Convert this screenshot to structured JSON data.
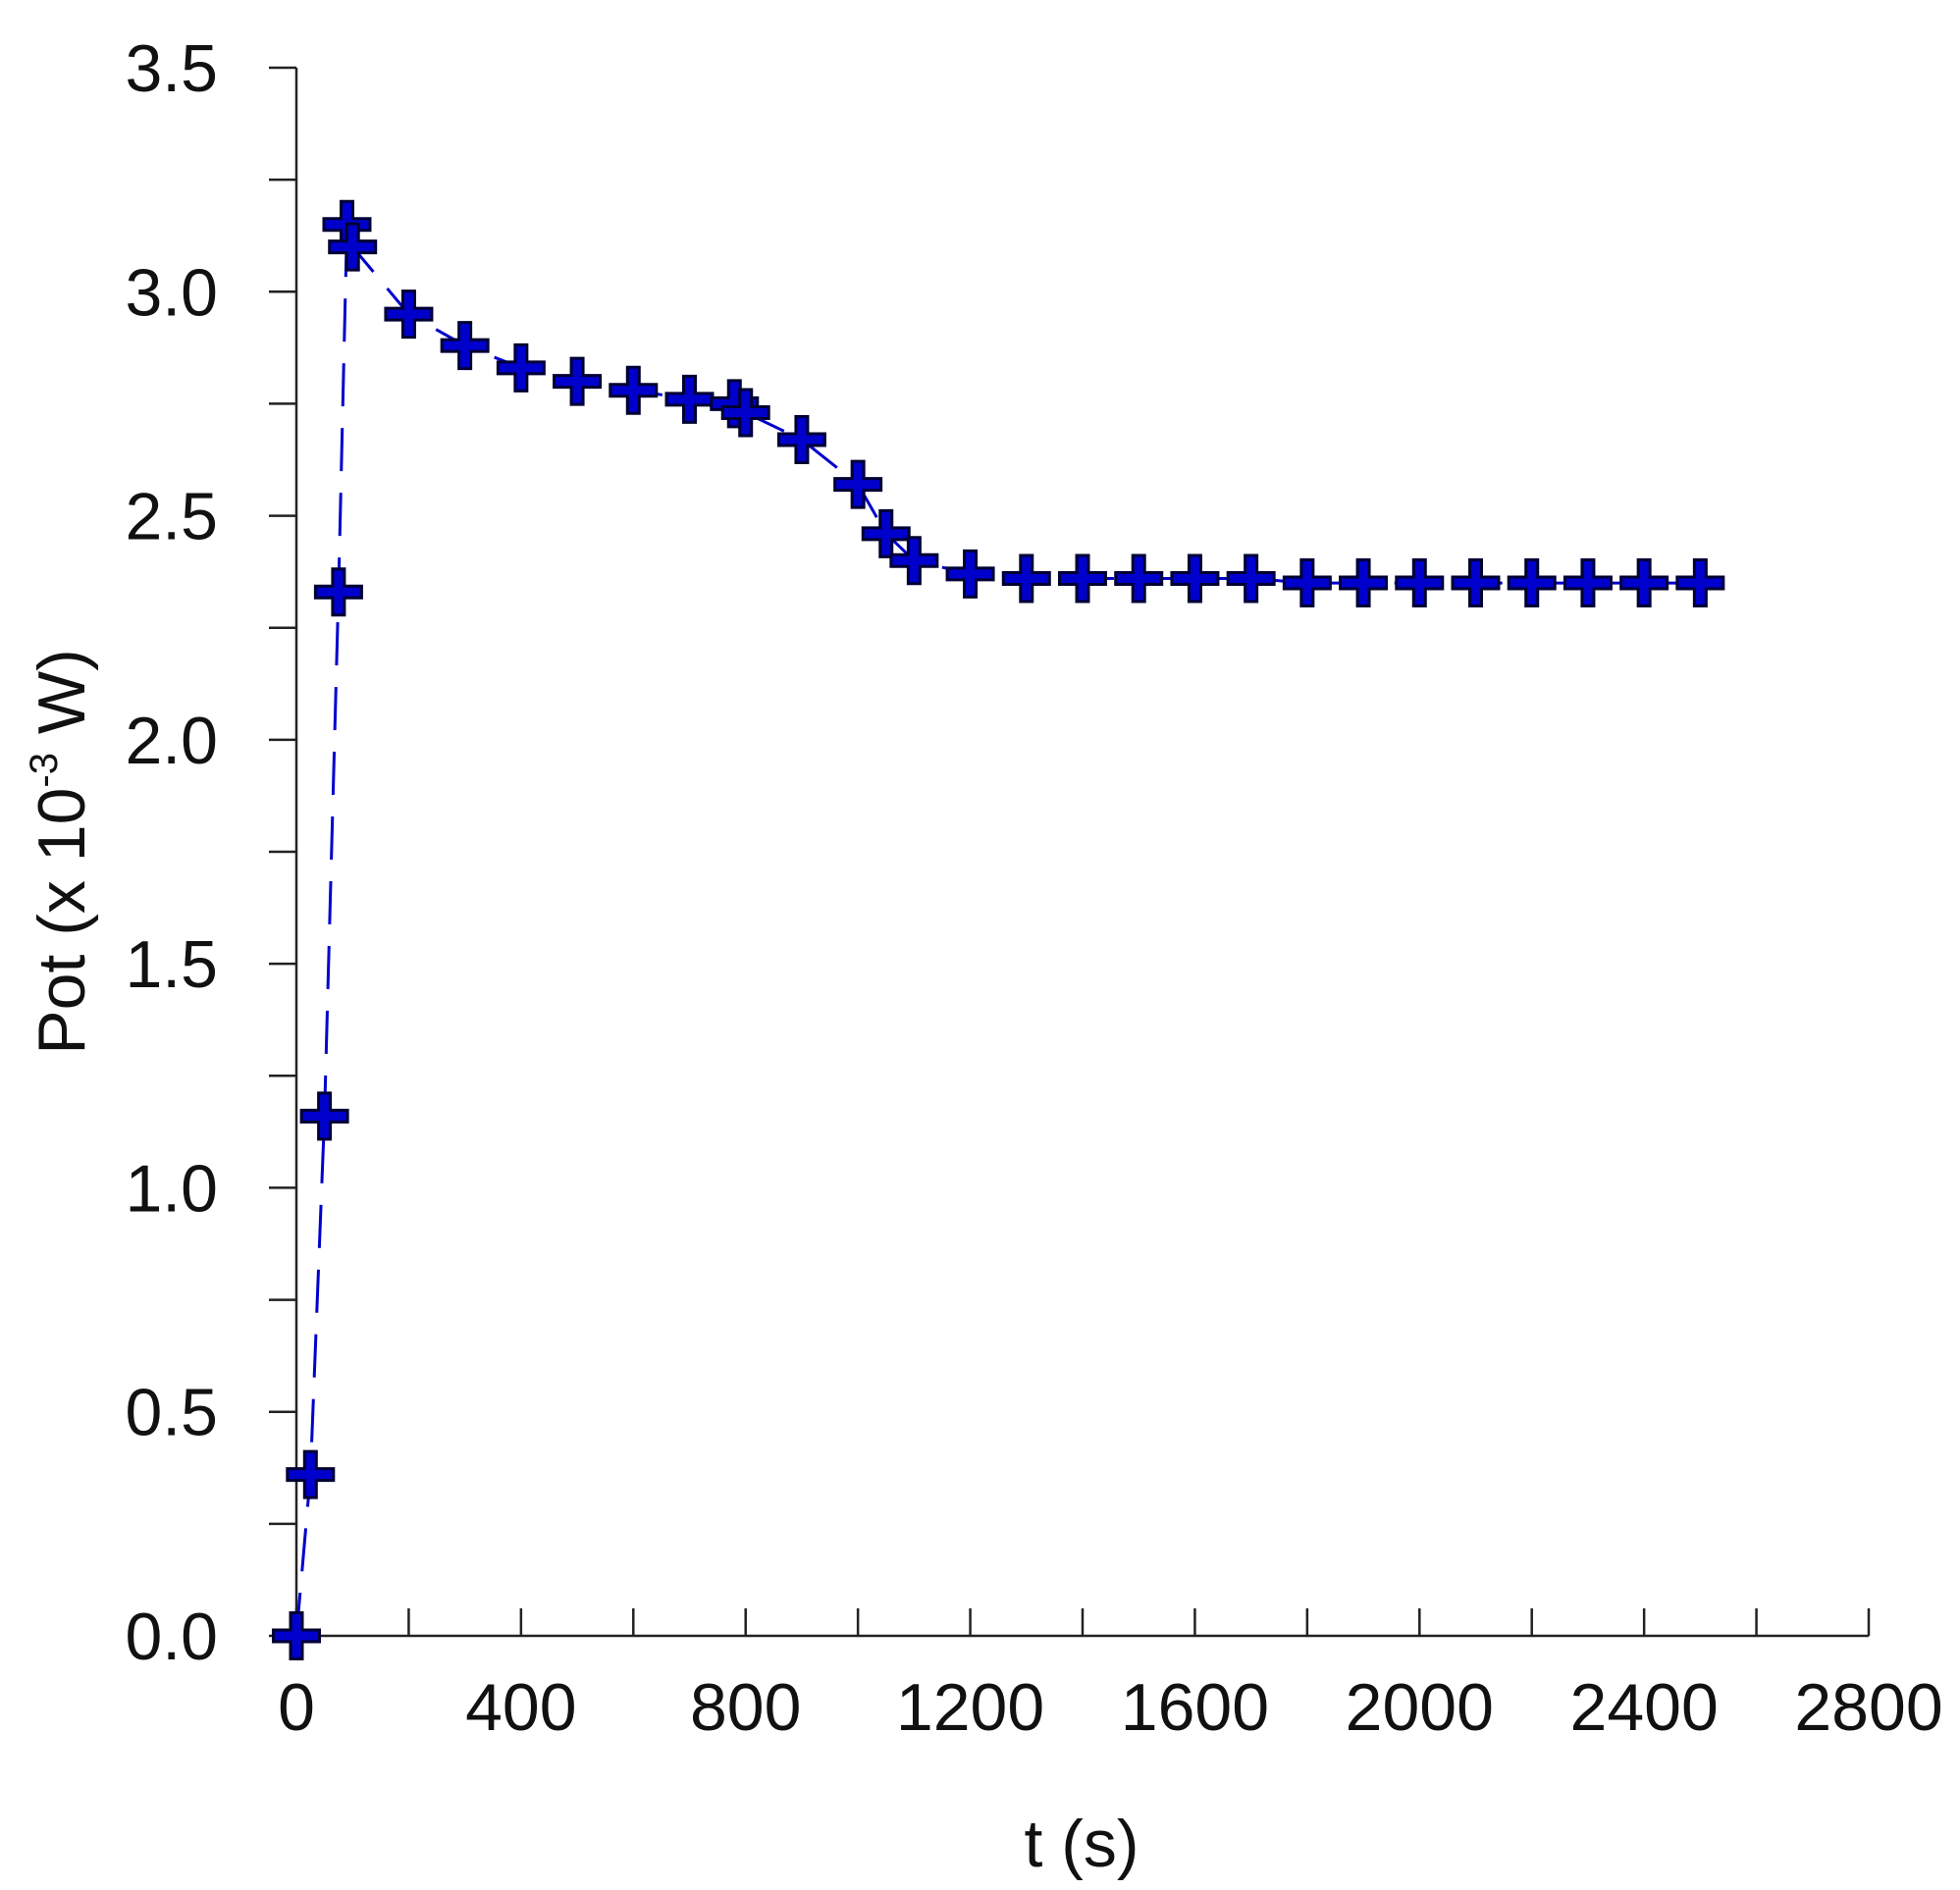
{
  "chart_data": {
    "type": "scatter",
    "title": "",
    "xlabel": "t (s)",
    "ylabel": {
      "prefix": "Pot (x 10",
      "exponent": "-3",
      "suffix": " W)"
    },
    "xlim": [
      0,
      2800
    ],
    "ylim": [
      0,
      3.5
    ],
    "x_ticks": [
      "0",
      "400",
      "800",
      "1200",
      "1600",
      "2000",
      "2400",
      "2800"
    ],
    "x_tick_values": [
      0,
      400,
      800,
      1200,
      1600,
      2000,
      2400,
      2800
    ],
    "x_minor_step": 200,
    "y_ticks": [
      "0.0",
      "0.5",
      "1.0",
      "1.5",
      "2.0",
      "2.5",
      "3.0",
      "3.5"
    ],
    "y_tick_values": [
      0,
      0.5,
      1.0,
      1.5,
      2.0,
      2.5,
      3.0,
      3.5
    ],
    "y_minor_step": 0.25,
    "grid": false,
    "series": [
      {
        "marker": "plus",
        "line": "dashed",
        "color": "#0000cc",
        "marker_outline": "#000033",
        "points": [
          [
            0,
            0.0
          ],
          [
            25,
            0.36
          ],
          [
            50,
            1.16
          ],
          [
            75,
            2.33
          ],
          [
            90,
            3.15
          ],
          [
            100,
            3.1
          ],
          [
            200,
            2.95
          ],
          [
            300,
            2.88
          ],
          [
            400,
            2.83
          ],
          [
            500,
            2.8
          ],
          [
            600,
            2.78
          ],
          [
            700,
            2.76
          ],
          [
            780,
            2.75
          ],
          [
            800,
            2.73
          ],
          [
            900,
            2.67
          ],
          [
            1000,
            2.57
          ],
          [
            1050,
            2.46
          ],
          [
            1100,
            2.4
          ],
          [
            1200,
            2.37
          ],
          [
            1300,
            2.36
          ],
          [
            1400,
            2.36
          ],
          [
            1500,
            2.36
          ],
          [
            1600,
            2.36
          ],
          [
            1700,
            2.36
          ],
          [
            1800,
            2.35
          ],
          [
            1900,
            2.35
          ],
          [
            2000,
            2.35
          ],
          [
            2100,
            2.35
          ],
          [
            2200,
            2.35
          ],
          [
            2300,
            2.35
          ],
          [
            2400,
            2.35
          ],
          [
            2500,
            2.35
          ]
        ]
      }
    ]
  }
}
